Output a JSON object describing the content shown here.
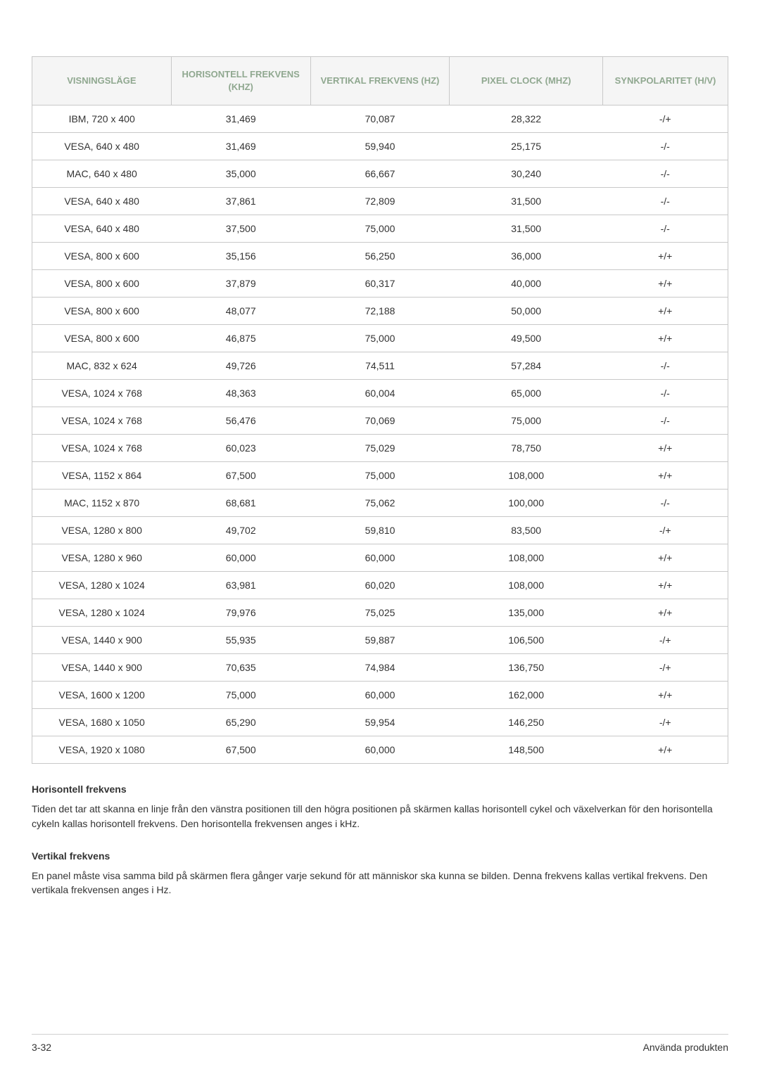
{
  "table": {
    "header_bg": "#f5f5f5",
    "header_color": "#90a890",
    "border_color": "#c8c8c8",
    "text_color": "#333333",
    "font_size_header": 13,
    "font_size_body": 14,
    "columns": [
      {
        "label": "VISNINGSLÄGE",
        "width": "20%"
      },
      {
        "label": "HORISONTELL FREKVENS (KHZ)",
        "width": "20%"
      },
      {
        "label": "VERTIKAL FREKVENS (HZ)",
        "width": "20%"
      },
      {
        "label": "PIXEL CLOCK (MHZ)",
        "width": "22%"
      },
      {
        "label": "SYNKPOLARITET (H/V)",
        "width": "18%"
      }
    ],
    "rows": [
      [
        "IBM, 720 x 400",
        "31,469",
        "70,087",
        "28,322",
        "-/+"
      ],
      [
        "VESA, 640 x 480",
        "31,469",
        "59,940",
        "25,175",
        "-/-"
      ],
      [
        "MAC, 640 x 480",
        "35,000",
        "66,667",
        "30,240",
        "-/-"
      ],
      [
        "VESA, 640 x 480",
        "37,861",
        "72,809",
        "31,500",
        "-/-"
      ],
      [
        "VESA, 640 x 480",
        "37,500",
        "75,000",
        "31,500",
        "-/-"
      ],
      [
        "VESA, 800 x 600",
        "35,156",
        "56,250",
        "36,000",
        "+/+"
      ],
      [
        "VESA, 800 x 600",
        "37,879",
        "60,317",
        "40,000",
        "+/+"
      ],
      [
        "VESA, 800 x 600",
        "48,077",
        "72,188",
        "50,000",
        "+/+"
      ],
      [
        "VESA, 800 x 600",
        "46,875",
        "75,000",
        "49,500",
        "+/+"
      ],
      [
        "MAC, 832 x 624",
        "49,726",
        "74,511",
        "57,284",
        "-/-"
      ],
      [
        "VESA, 1024 x 768",
        "48,363",
        "60,004",
        "65,000",
        "-/-"
      ],
      [
        "VESA, 1024 x 768",
        "56,476",
        "70,069",
        "75,000",
        "-/-"
      ],
      [
        "VESA, 1024 x 768",
        "60,023",
        "75,029",
        "78,750",
        "+/+"
      ],
      [
        "VESA, 1152 x 864",
        "67,500",
        "75,000",
        "108,000",
        "+/+"
      ],
      [
        "MAC, 1152 x 870",
        "68,681",
        "75,062",
        "100,000",
        "-/-"
      ],
      [
        "VESA, 1280 x 800",
        "49,702",
        "59,810",
        "83,500",
        "-/+"
      ],
      [
        "VESA, 1280 x 960",
        "60,000",
        "60,000",
        "108,000",
        "+/+"
      ],
      [
        "VESA, 1280 x 1024",
        "63,981",
        "60,020",
        "108,000",
        "+/+"
      ],
      [
        "VESA, 1280 x 1024",
        "79,976",
        "75,025",
        "135,000",
        "+/+"
      ],
      [
        "VESA, 1440 x 900",
        "55,935",
        "59,887",
        "106,500",
        "-/+"
      ],
      [
        "VESA, 1440 x 900",
        "70,635",
        "74,984",
        "136,750",
        "-/+"
      ],
      [
        "VESA, 1600 x 1200",
        "75,000",
        "60,000",
        "162,000",
        "+/+"
      ],
      [
        "VESA, 1680 x 1050",
        "65,290",
        "59,954",
        "146,250",
        "-/+"
      ],
      [
        "VESA, 1920 x 1080",
        "67,500",
        "60,000",
        "148,500",
        "+/+"
      ]
    ]
  },
  "sections": [
    {
      "heading": "Horisontell frekvens",
      "text": "Tiden det tar att skanna en linje från den vänstra positionen till den högra positionen på skärmen kallas horisontell cykel och växelverkan för den horisontella cykeln kallas horisontell frekvens. Den horisontella frekvensen anges i kHz."
    },
    {
      "heading": "Vertikal frekvens",
      "text": "En panel måste visa samma bild på skärmen flera gånger varje sekund för att människor ska kunna se bilden. Denna frekvens kallas vertikal frekvens. Den vertikala frekvensen anges i Hz."
    }
  ],
  "footer": {
    "left": "3-32",
    "right": "Använda produkten"
  }
}
